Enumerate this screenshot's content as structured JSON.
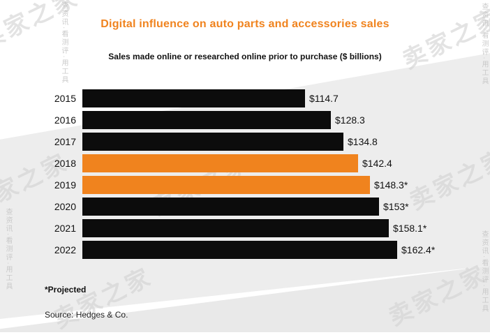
{
  "watermark": {
    "text": "卖家之家",
    "tagline": "查资讯·看测评·用工具"
  },
  "chart_data": {
    "type": "bar",
    "orientation": "horizontal",
    "title": "Digital influence on auto parts and accessories sales",
    "subtitle": "Sales made online or researched online prior to purchase ($ billions)",
    "categories": [
      "2015",
      "2016",
      "2017",
      "2018",
      "2019",
      "2020",
      "2021",
      "2022"
    ],
    "values": [
      114.7,
      128.3,
      134.8,
      142.4,
      148.3,
      153,
      158.1,
      162.4
    ],
    "value_labels": [
      "$114.7",
      "$128.3",
      "$134.8",
      "$142.4",
      "$148.3*",
      "$153*",
      "$158.1*",
      "$162.4*"
    ],
    "highlighted_categories": [
      "2018",
      "2019"
    ],
    "bar_color": "#0c0c0c",
    "highlight_color": "#f0831e",
    "title_color": "#f0831e",
    "xlim": [
      0,
      170
    ],
    "grid": false,
    "legend": "none",
    "footnote": "*Projected",
    "source": "Source: Hedges & Co."
  }
}
